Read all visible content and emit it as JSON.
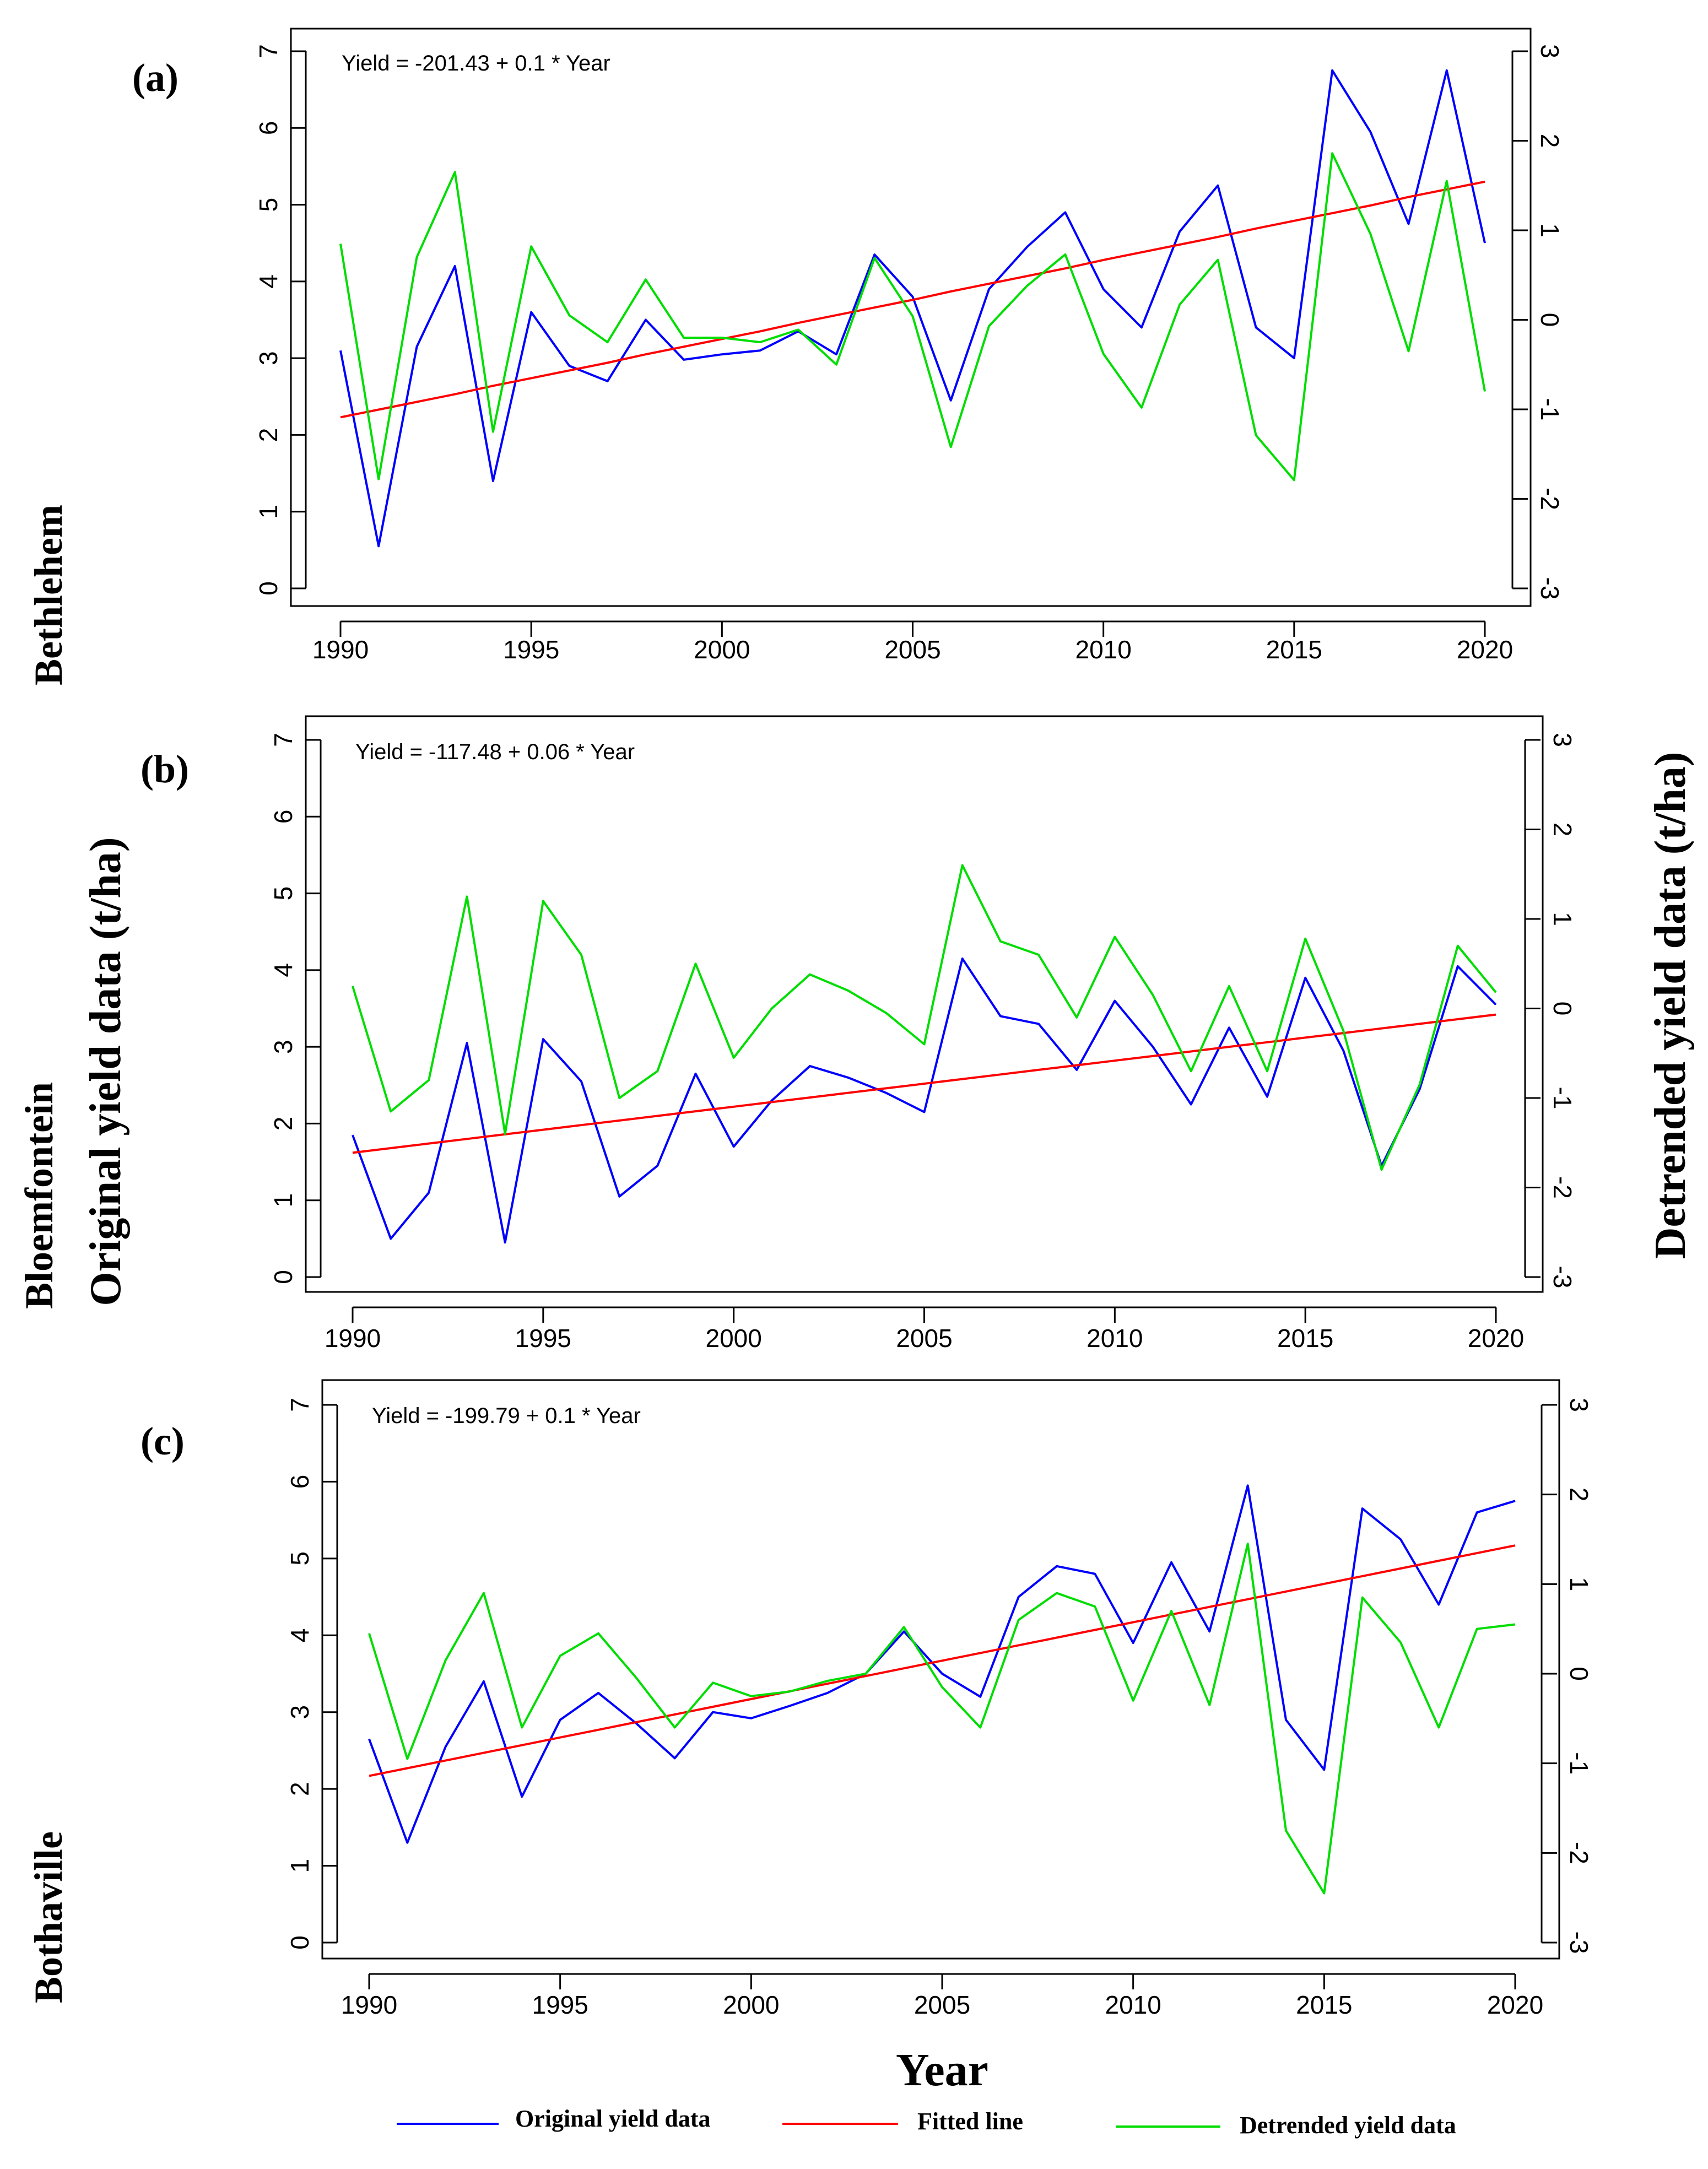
{
  "chart_data": [
    {
      "type": "line",
      "panel": "(a)",
      "site": "Bethlehem",
      "equation": "Yield = -201.43 + 0.1 * Year",
      "x": [
        1990,
        1991,
        1992,
        1993,
        1994,
        1995,
        1996,
        1997,
        1998,
        1999,
        2000,
        2001,
        2002,
        2003,
        2004,
        2005,
        2006,
        2007,
        2008,
        2009,
        2010,
        2011,
        2012,
        2013,
        2014,
        2015,
        2016,
        2017,
        2018,
        2019,
        2020
      ],
      "xticks": [
        1990,
        1995,
        2000,
        2005,
        2010,
        2015,
        2020
      ],
      "xlim": [
        1990,
        2020
      ],
      "ylim_left": [
        0,
        7
      ],
      "ylim_right": [
        -3,
        3
      ],
      "yticks_left": [
        0,
        1,
        2,
        3,
        4,
        5,
        6,
        7
      ],
      "yticks_right": [
        -3,
        -2,
        -1,
        0,
        1,
        2,
        3
      ],
      "series": [
        {
          "name": "Original yield data",
          "color": "#0000ff",
          "axis": "left",
          "values": [
            3.1,
            0.55,
            3.15,
            4.2,
            1.4,
            3.6,
            2.9,
            2.7,
            3.5,
            2.98,
            3.05,
            3.1,
            3.35,
            3.05,
            4.35,
            3.8,
            2.45,
            3.9,
            4.45,
            4.9,
            3.9,
            3.4,
            4.65,
            5.25,
            3.4,
            3.0,
            6.75,
            5.95,
            4.75,
            6.75,
            4.5
          ]
        },
        {
          "name": "Fitted line",
          "color": "#ff0000",
          "axis": "left",
          "values": [
            2.23,
            2.33,
            2.43,
            2.53,
            2.64,
            2.74,
            2.84,
            2.94,
            3.05,
            3.15,
            3.25,
            3.35,
            3.46,
            3.56,
            3.66,
            3.76,
            3.87,
            3.97,
            4.07,
            4.17,
            4.28,
            4.38,
            4.48,
            4.58,
            4.69,
            4.79,
            4.89,
            4.99,
            5.1,
            5.2,
            5.3
          ]
        },
        {
          "name": "Detrended yield data",
          "color": "#00dd00",
          "axis": "right",
          "values": [
            0.85,
            -1.78,
            0.7,
            1.65,
            -1.25,
            0.82,
            0.05,
            -0.25,
            0.45,
            -0.2,
            -0.2,
            -0.25,
            -0.11,
            -0.5,
            0.69,
            0.04,
            -1.42,
            -0.07,
            0.38,
            0.73,
            -0.38,
            -0.98,
            0.17,
            0.67,
            -1.29,
            -1.79,
            1.86,
            0.96,
            -0.35,
            1.55,
            -0.8
          ]
        }
      ]
    },
    {
      "type": "line",
      "panel": "(b)",
      "site": "Bloemfontein",
      "equation": "Yield = -117.48 + 0.06 * Year",
      "x": [
        1990,
        1991,
        1992,
        1993,
        1994,
        1995,
        1996,
        1997,
        1998,
        1999,
        2000,
        2001,
        2002,
        2003,
        2004,
        2005,
        2006,
        2007,
        2008,
        2009,
        2010,
        2011,
        2012,
        2013,
        2014,
        2015,
        2016,
        2017,
        2018,
        2019,
        2020
      ],
      "xticks": [
        1990,
        1995,
        2000,
        2005,
        2010,
        2015,
        2020
      ],
      "xlim": [
        1990,
        2020
      ],
      "ylim_left": [
        0,
        7
      ],
      "ylim_right": [
        -3,
        3
      ],
      "yticks_left": [
        0,
        1,
        2,
        3,
        4,
        5,
        6,
        7
      ],
      "yticks_right": [
        -3,
        -2,
        -1,
        0,
        1,
        2,
        3
      ],
      "series": [
        {
          "name": "Original yield data",
          "color": "#0000ff",
          "axis": "left",
          "values": [
            1.85,
            0.5,
            1.1,
            3.05,
            0.45,
            3.1,
            2.55,
            1.05,
            1.45,
            2.65,
            1.7,
            2.3,
            2.75,
            2.6,
            2.4,
            2.15,
            4.15,
            3.4,
            3.3,
            2.7,
            3.6,
            3.0,
            2.25,
            3.25,
            2.35,
            3.9,
            2.95,
            1.45,
            2.45,
            4.05,
            3.55
          ]
        },
        {
          "name": "Fitted line",
          "color": "#ff0000",
          "axis": "left",
          "values": [
            1.62,
            1.68,
            1.74,
            1.8,
            1.86,
            1.92,
            1.98,
            2.04,
            2.1,
            2.16,
            2.22,
            2.28,
            2.34,
            2.4,
            2.46,
            2.52,
            2.58,
            2.64,
            2.7,
            2.76,
            2.82,
            2.88,
            2.94,
            3.0,
            3.06,
            3.12,
            3.18,
            3.24,
            3.3,
            3.36,
            3.42
          ]
        },
        {
          "name": "Detrended yield data",
          "color": "#00dd00",
          "axis": "right",
          "values": [
            0.25,
            -1.15,
            -0.8,
            1.25,
            -1.4,
            1.2,
            0.6,
            -1.0,
            -0.7,
            0.5,
            -0.55,
            0.0,
            0.38,
            0.2,
            -0.05,
            -0.4,
            1.6,
            0.75,
            0.6,
            -0.1,
            0.8,
            0.15,
            -0.7,
            0.25,
            -0.7,
            0.78,
            -0.25,
            -1.8,
            -0.85,
            0.7,
            0.18
          ]
        }
      ]
    },
    {
      "type": "line",
      "panel": "(c)",
      "site": "Bothaville",
      "equation": "Yield = -199.79 + 0.1 * Year",
      "x": [
        1990,
        1991,
        1992,
        1993,
        1994,
        1995,
        1996,
        1997,
        1998,
        1999,
        2000,
        2001,
        2002,
        2003,
        2004,
        2005,
        2006,
        2007,
        2008,
        2009,
        2010,
        2011,
        2012,
        2013,
        2014,
        2015,
        2016,
        2017,
        2018,
        2019,
        2020
      ],
      "xticks": [
        1990,
        1995,
        2000,
        2005,
        2010,
        2015,
        2020
      ],
      "xlim": [
        1990,
        2020
      ],
      "ylim_left": [
        0,
        7
      ],
      "ylim_right": [
        -3,
        3
      ],
      "yticks_left": [
        0,
        1,
        2,
        3,
        4,
        5,
        6,
        7
      ],
      "yticks_right": [
        -3,
        -2,
        -1,
        0,
        1,
        2,
        3
      ],
      "series": [
        {
          "name": "Original yield data",
          "color": "#0000ff",
          "axis": "left",
          "values": [
            2.65,
            1.3,
            2.55,
            3.4,
            1.9,
            2.9,
            3.25,
            2.85,
            2.4,
            3.0,
            2.92,
            3.08,
            3.25,
            3.5,
            4.05,
            3.5,
            3.2,
            4.5,
            4.9,
            4.8,
            3.9,
            4.95,
            4.05,
            5.95,
            2.9,
            2.25,
            5.65,
            5.25,
            4.4,
            5.6,
            5.75
          ]
        },
        {
          "name": "Fitted line",
          "color": "#ff0000",
          "axis": "left",
          "values": [
            2.17,
            2.27,
            2.37,
            2.47,
            2.57,
            2.67,
            2.77,
            2.87,
            2.97,
            3.07,
            3.17,
            3.27,
            3.37,
            3.47,
            3.57,
            3.67,
            3.77,
            3.87,
            3.97,
            4.07,
            4.17,
            4.27,
            4.37,
            4.47,
            4.57,
            4.67,
            4.77,
            4.87,
            4.97,
            5.07,
            5.17
          ]
        },
        {
          "name": "Detrended yield data",
          "color": "#00dd00",
          "axis": "right",
          "values": [
            0.45,
            -0.95,
            0.15,
            0.9,
            -0.6,
            0.2,
            0.45,
            -0.05,
            -0.6,
            -0.1,
            -0.25,
            -0.2,
            -0.08,
            0.0,
            0.52,
            -0.15,
            -0.6,
            0.6,
            0.9,
            0.75,
            -0.3,
            0.7,
            -0.35,
            1.45,
            -1.75,
            -2.45,
            0.85,
            0.35,
            -0.6,
            0.5,
            0.55
          ]
        }
      ]
    }
  ],
  "labels": {
    "y_left": "Original yield data (t/ha)",
    "y_right": "Detrended yield data (t/ha)",
    "x": "Year"
  },
  "legend": [
    {
      "label": "Original yield data",
      "color": "#0000ff"
    },
    {
      "label": "Fitted line",
      "color": "#ff0000"
    },
    {
      "label": "Detrended yield data",
      "color": "#00dd00"
    }
  ]
}
